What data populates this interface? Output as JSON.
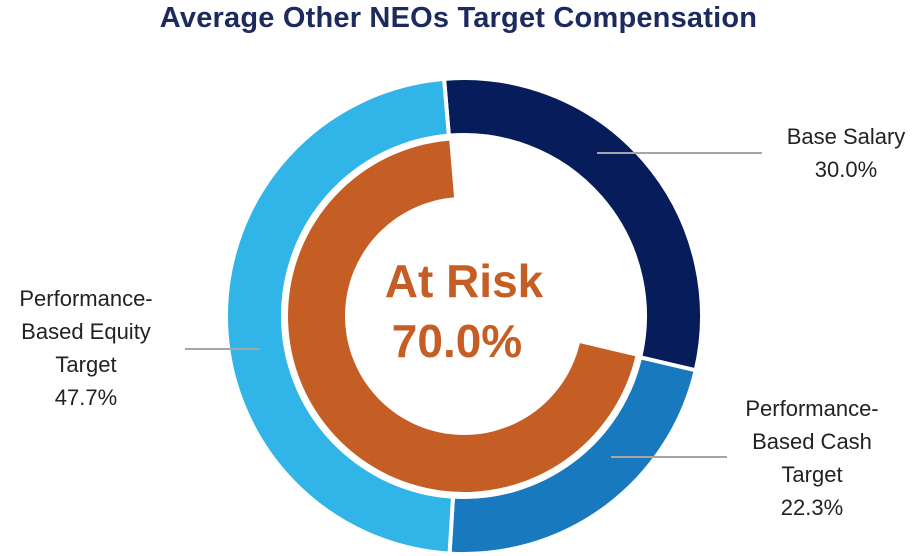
{
  "title": "Average Other NEOs Target Compensation",
  "center": {
    "line1": "At Risk",
    "line2": "70.0%"
  },
  "colors": {
    "base_salary": "#071c5a",
    "cash": "#1979bf",
    "equity": "#31b5e8",
    "at_risk": "#c55e24",
    "title": "#1c2a5e"
  },
  "chart_data": {
    "type": "pie",
    "variant": "nested-donut",
    "title": "Average Other NEOs Target Compensation",
    "outer_ring": {
      "slices": [
        {
          "key": "base",
          "label_lines": [
            "Base Salary"
          ],
          "value": 30.0,
          "value_label": "30.0%",
          "color": "#071c5a"
        },
        {
          "key": "cash",
          "label_lines": [
            "Performance-",
            "Based Cash",
            "Target"
          ],
          "value": 22.3,
          "value_label": "22.3%",
          "color": "#1979bf"
        },
        {
          "key": "equity",
          "label_lines": [
            "Performance-",
            "Based Equity",
            "Target"
          ],
          "value": 47.7,
          "value_label": "47.7%",
          "color": "#31b5e8"
        }
      ]
    },
    "inner_ring": {
      "slices": [
        {
          "key": "at_risk",
          "label_lines": [
            "At Risk"
          ],
          "value": 70.0,
          "value_label": "70.0%",
          "color": "#c55e24"
        }
      ]
    }
  }
}
